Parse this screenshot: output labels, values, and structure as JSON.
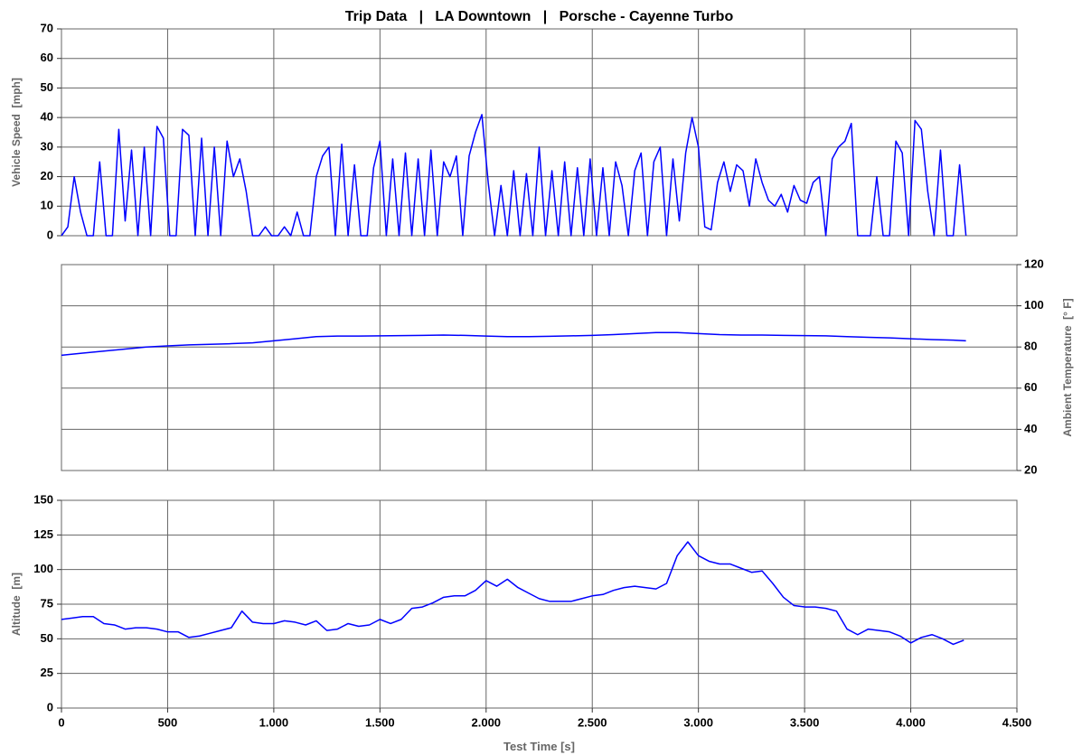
{
  "chart_data": [
    {
      "type": "line",
      "title": "Trip Data   |   LA Downtown   |   Porsche - Cayenne Turbo",
      "y_label": "Vehicle Speed  [mph]",
      "y_axis_side": "left",
      "grid": true,
      "ylim": [
        0,
        70
      ],
      "yticks": [
        0,
        10,
        20,
        30,
        40,
        50,
        60,
        70
      ],
      "x": [
        0,
        30,
        60,
        90,
        120,
        150,
        180,
        210,
        240,
        270,
        300,
        330,
        360,
        390,
        420,
        450,
        480,
        510,
        540,
        570,
        600,
        630,
        660,
        690,
        720,
        750,
        780,
        810,
        840,
        870,
        900,
        930,
        960,
        990,
        1020,
        1050,
        1080,
        1110,
        1140,
        1170,
        1200,
        1230,
        1260,
        1290,
        1320,
        1350,
        1380,
        1410,
        1440,
        1470,
        1500,
        1530,
        1560,
        1590,
        1620,
        1650,
        1680,
        1710,
        1740,
        1770,
        1800,
        1830,
        1860,
        1890,
        1920,
        1950,
        1980,
        2010,
        2040,
        2070,
        2100,
        2130,
        2160,
        2190,
        2220,
        2250,
        2280,
        2310,
        2340,
        2370,
        2400,
        2430,
        2460,
        2490,
        2520,
        2550,
        2580,
        2610,
        2640,
        2670,
        2700,
        2730,
        2760,
        2790,
        2820,
        2850,
        2880,
        2910,
        2940,
        2970,
        3000,
        3030,
        3060,
        3090,
        3120,
        3150,
        3180,
        3210,
        3240,
        3270,
        3300,
        3330,
        3360,
        3390,
        3420,
        3450,
        3480,
        3510,
        3540,
        3570,
        3600,
        3630,
        3660,
        3690,
        3720,
        3750,
        3780,
        3810,
        3840,
        3870,
        3900,
        3930,
        3960,
        3990,
        4020,
        4050,
        4080,
        4110,
        4140,
        4170,
        4200,
        4230,
        4260
      ],
      "series": [
        {
          "color": "#0000ff",
          "values": [
            0,
            3,
            20,
            8,
            0,
            0,
            25,
            0,
            0,
            36,
            5,
            29,
            0,
            30,
            0,
            37,
            33,
            0,
            0,
            36,
            34,
            0,
            33,
            0,
            30,
            0,
            32,
            20,
            26,
            15,
            0,
            0,
            3,
            0,
            0,
            3,
            0,
            8,
            0,
            0,
            20,
            27,
            30,
            0,
            31,
            0,
            24,
            0,
            0,
            23,
            32,
            0,
            26,
            0,
            28,
            0,
            26,
            0,
            29,
            0,
            25,
            20,
            27,
            0,
            27,
            35,
            41,
            18,
            0,
            17,
            0,
            22,
            0,
            21,
            0,
            30,
            0,
            22,
            0,
            25,
            0,
            23,
            0,
            26,
            0,
            23,
            0,
            25,
            17,
            0,
            22,
            28,
            0,
            25,
            30,
            0,
            26,
            5,
            28,
            40,
            30,
            3,
            2,
            18,
            25,
            15,
            24,
            22,
            10,
            26,
            18,
            12,
            10,
            14,
            8,
            17,
            12,
            11,
            18,
            20,
            0,
            26,
            30,
            32,
            38,
            0,
            0,
            0,
            20,
            0,
            0,
            32,
            28,
            0,
            39,
            36,
            15,
            0,
            29,
            0,
            0,
            24,
            0
          ]
        }
      ]
    },
    {
      "type": "line",
      "y_label": "Ambient Temperature  [° F]",
      "y_axis_side": "right",
      "grid": true,
      "ylim": [
        20,
        120
      ],
      "yticks": [
        20,
        40,
        60,
        80,
        100,
        120
      ],
      "x": [
        0,
        100,
        200,
        300,
        400,
        500,
        600,
        700,
        800,
        900,
        1000,
        1100,
        1200,
        1300,
        1400,
        1500,
        1600,
        1700,
        1800,
        1900,
        2000,
        2100,
        2200,
        2300,
        2400,
        2500,
        2600,
        2700,
        2800,
        2900,
        3000,
        3100,
        3200,
        3300,
        3400,
        3500,
        3600,
        3700,
        3800,
        3900,
        4000,
        4100,
        4200,
        4260
      ],
      "series": [
        {
          "color": "#0000ff",
          "values": [
            76,
            77,
            78,
            79,
            80,
            80.5,
            81,
            81.3,
            81.6,
            82,
            83,
            84,
            85,
            85.3,
            85.3,
            85.4,
            85.5,
            85.6,
            85.8,
            85.6,
            85.3,
            85,
            85,
            85.2,
            85.4,
            85.6,
            86,
            86.5,
            87,
            87,
            86.5,
            86,
            85.8,
            85.8,
            85.6,
            85.5,
            85.4,
            85,
            84.7,
            84.4,
            84,
            83.6,
            83.3,
            83
          ]
        }
      ]
    },
    {
      "type": "line",
      "y_label": "Altitude  [m]",
      "y_axis_side": "left",
      "grid": true,
      "x_label": "Test Time [s]",
      "xlim": [
        0,
        4500
      ],
      "xticks": [
        0,
        500,
        {
          "value": 1000,
          "label": "1.000"
        },
        {
          "value": 1500,
          "label": "1.500"
        },
        {
          "value": 2000,
          "label": "2.000"
        },
        {
          "value": 2500,
          "label": "2.500"
        },
        {
          "value": 3000,
          "label": "3.000"
        },
        {
          "value": 3500,
          "label": "3.500"
        },
        {
          "value": 4000,
          "label": "4.000"
        },
        {
          "value": 4500,
          "label": "4.500"
        }
      ],
      "ylim": [
        0,
        150
      ],
      "yticks": [
        0,
        25,
        50,
        75,
        100,
        125,
        150
      ],
      "x": [
        0,
        50,
        100,
        150,
        200,
        250,
        300,
        350,
        400,
        450,
        500,
        550,
        600,
        650,
        700,
        750,
        800,
        850,
        900,
        950,
        1000,
        1050,
        1100,
        1150,
        1200,
        1250,
        1300,
        1350,
        1400,
        1450,
        1500,
        1550,
        1600,
        1650,
        1700,
        1750,
        1800,
        1850,
        1900,
        1950,
        2000,
        2050,
        2100,
        2150,
        2200,
        2250,
        2300,
        2350,
        2400,
        2450,
        2500,
        2550,
        2600,
        2650,
        2700,
        2750,
        2800,
        2850,
        2900,
        2950,
        3000,
        3050,
        3100,
        3150,
        3200,
        3250,
        3300,
        3350,
        3400,
        3450,
        3500,
        3550,
        3600,
        3650,
        3700,
        3750,
        3800,
        3850,
        3900,
        3950,
        4000,
        4050,
        4100,
        4150,
        4200,
        4250
      ],
      "series": [
        {
          "color": "#0000ff",
          "values": [
            64,
            65,
            66,
            66,
            61,
            60,
            57,
            58,
            58,
            57,
            55,
            55,
            51,
            52,
            54,
            56,
            58,
            70,
            62,
            61,
            61,
            63,
            62,
            60,
            63,
            56,
            57,
            61,
            59,
            60,
            64,
            61,
            64,
            72,
            73,
            76,
            80,
            81,
            81,
            85,
            92,
            88,
            93,
            87,
            83,
            79,
            77,
            77,
            77,
            79,
            81,
            82,
            85,
            87,
            88,
            87,
            86,
            90,
            110,
            120,
            110,
            106,
            104,
            104,
            101,
            98,
            99,
            90,
            80,
            74,
            73,
            73,
            72,
            70,
            57,
            53,
            57,
            56,
            55,
            52,
            47,
            51,
            53,
            50,
            46,
            49
          ]
        }
      ]
    }
  ]
}
